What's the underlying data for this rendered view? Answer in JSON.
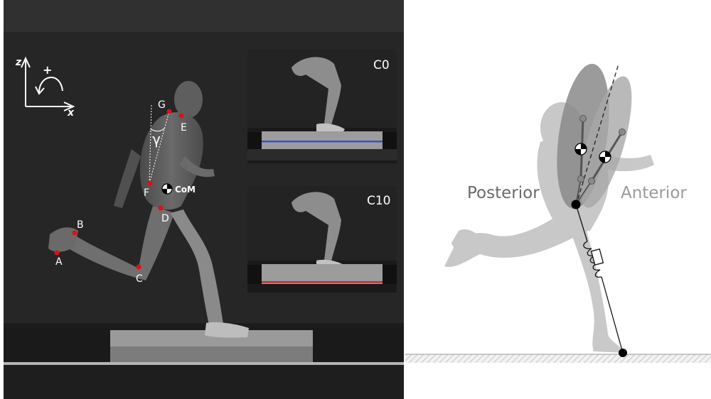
{
  "photo": {
    "axes": {
      "z": "z",
      "x": "x",
      "plus": "+"
    },
    "markers": [
      {
        "id": "A",
        "label": "A"
      },
      {
        "id": "B",
        "label": "B"
      },
      {
        "id": "C",
        "label": "C"
      },
      {
        "id": "D",
        "label": "D"
      },
      {
        "id": "E",
        "label": "E"
      },
      {
        "id": "F",
        "label": "F"
      },
      {
        "id": "G",
        "label": "G"
      }
    ],
    "angle_symbol": "γ",
    "com_label": "CoM",
    "insets": [
      {
        "id": "c0",
        "label": "C0",
        "line_color": "#3a4fd0"
      },
      {
        "id": "c10",
        "label": "C10",
        "line_color": "#d02a2a"
      }
    ],
    "marker_color": "#e01010"
  },
  "model": {
    "posterior_label": "Posterior",
    "anterior_label": "Anterior"
  }
}
